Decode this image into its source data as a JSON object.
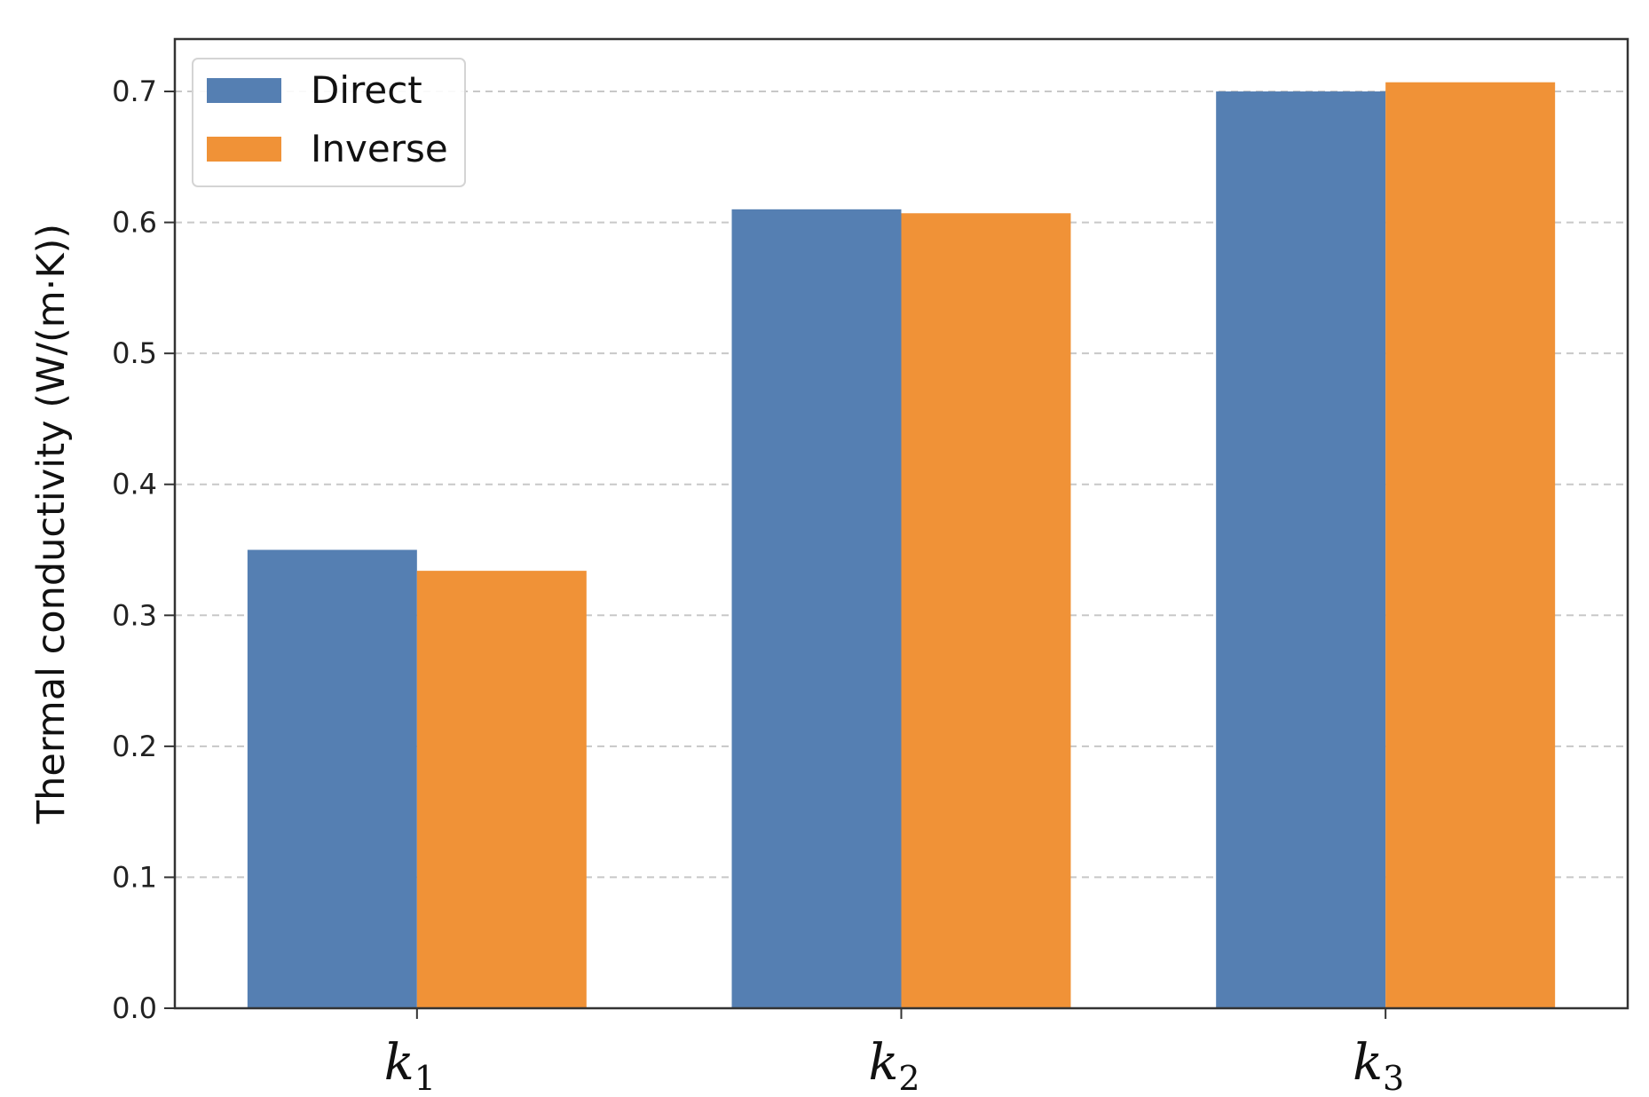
{
  "chart_data": {
    "type": "bar",
    "categories": [
      {
        "main": "k",
        "sub": "1"
      },
      {
        "main": "k",
        "sub": "2"
      },
      {
        "main": "k",
        "sub": "3"
      }
    ],
    "series": [
      {
        "name": "Direct",
        "color": "#557fb2",
        "values": [
          0.35,
          0.61,
          0.7
        ]
      },
      {
        "name": "Inverse",
        "color": "#f09237",
        "values": [
          0.334,
          0.607,
          0.707
        ]
      }
    ],
    "xlabel": "",
    "ylabel": "Thermal conductivity (W/(m·K))",
    "ylim": [
      0,
      0.74
    ],
    "yticks": [
      "0.0",
      "0.1",
      "0.2",
      "0.3",
      "0.4",
      "0.5",
      "0.6",
      "0.7"
    ],
    "grid": "horizontal, dashed",
    "legend_position": "top-left"
  }
}
